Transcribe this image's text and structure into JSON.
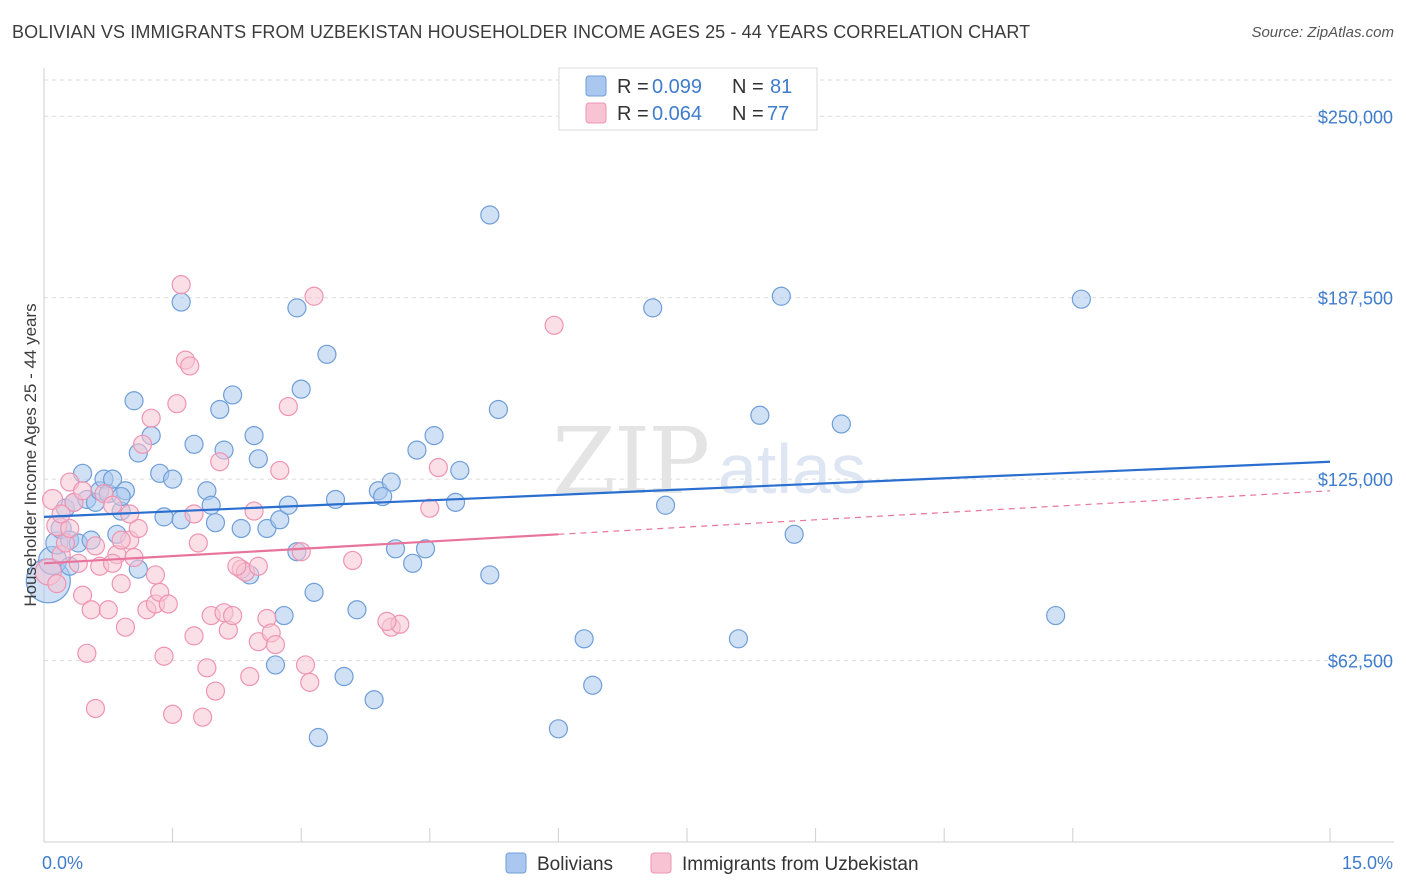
{
  "title": "BOLIVIAN VS IMMIGRANTS FROM UZBEKISTAN HOUSEHOLDER INCOME AGES 25 - 44 YEARS CORRELATION CHART",
  "source": "Source: ZipAtlas.com",
  "watermark": {
    "part1": "ZIP",
    "part2": "atlas"
  },
  "legend_top": {
    "rows": [
      {
        "r_label": "R =",
        "r_value": "0.099",
        "n_label": "N =",
        "n_value": "81"
      },
      {
        "r_label": "R =",
        "r_value": "0.064",
        "n_label": "N =",
        "n_value": "77"
      }
    ]
  },
  "legend_bottom": {
    "series1": "Bolivians",
    "series2": "Immigrants from Uzbekistan"
  },
  "chart_data": {
    "type": "scatter",
    "title": "BOLIVIAN VS IMMIGRANTS FROM UZBEKISTAN HOUSEHOLDER INCOME AGES 25 - 44 YEARS CORRELATION CHART",
    "xlabel": "",
    "ylabel": "Householder Income Ages 25 - 44 years",
    "xlim": [
      0,
      15
    ],
    "ylim": [
      0,
      262500
    ],
    "x_tick_labels": [
      "0.0%",
      "15.0%"
    ],
    "y_ticks": [
      62500,
      125000,
      187500,
      250000
    ],
    "y_tick_labels": [
      "$62,500",
      "$125,000",
      "$187,500",
      "$250,000"
    ],
    "colors": {
      "bolivians_fill": "#aac8ef",
      "bolivians_stroke": "#6f9ed8",
      "bolivians_line": "#2a6fd0",
      "uzbek_fill": "#f8c4d4",
      "uzbek_stroke": "#ee94b2",
      "uzbek_line": "#e8739c"
    },
    "series": [
      {
        "name": "Bolivians",
        "trend": {
          "x0": 0,
          "y0": 112000,
          "x1": 15,
          "y1": 131000,
          "dashed_from": null
        },
        "points": [
          [
            0.05,
            90000,
            22
          ],
          [
            0.1,
            97000,
            14
          ],
          [
            0.15,
            103000,
            11
          ],
          [
            0.2,
            108000,
            10
          ],
          [
            0.25,
            115000,
            9
          ],
          [
            0.3,
            104000,
            9
          ],
          [
            0.35,
            117000,
            9
          ],
          [
            0.4,
            103000,
            9
          ],
          [
            0.45,
            127000,
            9
          ],
          [
            0.5,
            118000,
            9
          ],
          [
            0.55,
            104000,
            9
          ],
          [
            0.6,
            117000,
            9
          ],
          [
            0.65,
            121000,
            9
          ],
          [
            0.7,
            125000,
            9
          ],
          [
            0.75,
            120000,
            9
          ],
          [
            0.8,
            125000,
            9
          ],
          [
            0.85,
            106000,
            9
          ],
          [
            0.9,
            114000,
            9
          ],
          [
            0.95,
            121000,
            9
          ],
          [
            1.05,
            152000,
            9
          ],
          [
            1.1,
            134000,
            9
          ],
          [
            1.1,
            94000,
            9
          ],
          [
            1.25,
            140000,
            9
          ],
          [
            1.35,
            127000,
            9
          ],
          [
            1.4,
            112000,
            9
          ],
          [
            1.5,
            125000,
            9
          ],
          [
            1.6,
            111000,
            9
          ],
          [
            1.75,
            137000,
            9
          ],
          [
            1.9,
            121000,
            9
          ],
          [
            2.0,
            110000,
            9
          ],
          [
            2.05,
            149000,
            9
          ],
          [
            2.1,
            135000,
            9
          ],
          [
            2.2,
            154000,
            9
          ],
          [
            2.3,
            108000,
            9
          ],
          [
            2.4,
            92000,
            9
          ],
          [
            2.45,
            140000,
            9
          ],
          [
            2.6,
            108000,
            9
          ],
          [
            2.7,
            61000,
            9
          ],
          [
            2.75,
            111000,
            9
          ],
          [
            2.8,
            78000,
            9
          ],
          [
            2.85,
            116000,
            9
          ],
          [
            2.95,
            100000,
            9
          ],
          [
            3.0,
            156000,
            9
          ],
          [
            3.15,
            86000,
            9
          ],
          [
            3.2,
            36000,
            9
          ],
          [
            3.3,
            168000,
            9
          ],
          [
            3.4,
            118000,
            9
          ],
          [
            3.5,
            57000,
            9
          ],
          [
            3.65,
            80000,
            9
          ],
          [
            3.85,
            49000,
            9
          ],
          [
            3.9,
            121000,
            9
          ],
          [
            4.05,
            124000,
            9
          ],
          [
            4.1,
            101000,
            9
          ],
          [
            4.3,
            96000,
            9
          ],
          [
            4.35,
            135000,
            9
          ],
          [
            4.45,
            101000,
            9
          ],
          [
            4.55,
            140000,
            9
          ],
          [
            4.8,
            117000,
            9
          ],
          [
            5.2,
            92000,
            9
          ],
          [
            5.2,
            216000,
            9
          ],
          [
            5.3,
            149000,
            9
          ],
          [
            6.0,
            39000,
            9
          ],
          [
            6.3,
            70000,
            9
          ],
          [
            6.4,
            54000,
            9
          ],
          [
            7.1,
            184000,
            9
          ],
          [
            7.25,
            116000,
            9
          ],
          [
            8.1,
            70000,
            9
          ],
          [
            8.35,
            147000,
            9
          ],
          [
            8.6,
            188000,
            9
          ],
          [
            8.75,
            106000,
            9
          ],
          [
            9.3,
            144000,
            9
          ],
          [
            11.8,
            78000,
            9
          ],
          [
            12.1,
            187000,
            9
          ],
          [
            1.6,
            186000,
            9
          ],
          [
            2.95,
            184000,
            9
          ],
          [
            0.3,
            95000,
            9
          ],
          [
            0.9,
            119000,
            9
          ],
          [
            1.95,
            116000,
            9
          ],
          [
            2.5,
            132000,
            9
          ],
          [
            3.95,
            119000,
            9
          ],
          [
            4.85,
            128000,
            9
          ]
        ]
      },
      {
        "name": "Immigrants from Uzbekistan",
        "trend": {
          "x0": 0,
          "y0": 96000,
          "x1": 15,
          "y1": 121000,
          "dashed_from": 6
        },
        "points": [
          [
            0.05,
            93000,
            13
          ],
          [
            0.1,
            118000,
            10
          ],
          [
            0.15,
            109000,
            10
          ],
          [
            0.2,
            99000,
            9
          ],
          [
            0.25,
            103000,
            9
          ],
          [
            0.3,
            108000,
            9
          ],
          [
            0.35,
            117000,
            9
          ],
          [
            0.4,
            96000,
            9
          ],
          [
            0.45,
            85000,
            9
          ],
          [
            0.5,
            65000,
            9
          ],
          [
            0.55,
            80000,
            9
          ],
          [
            0.6,
            46000,
            9
          ],
          [
            0.65,
            95000,
            9
          ],
          [
            0.7,
            120000,
            9
          ],
          [
            0.75,
            80000,
            9
          ],
          [
            0.8,
            116000,
            9
          ],
          [
            0.85,
            99000,
            9
          ],
          [
            0.9,
            89000,
            9
          ],
          [
            0.95,
            74000,
            9
          ],
          [
            1.0,
            104000,
            9
          ],
          [
            1.05,
            98000,
            9
          ],
          [
            1.1,
            108000,
            9
          ],
          [
            1.15,
            137000,
            9
          ],
          [
            1.2,
            80000,
            9
          ],
          [
            1.25,
            146000,
            9
          ],
          [
            1.3,
            82000,
            9
          ],
          [
            1.35,
            86000,
            9
          ],
          [
            1.4,
            64000,
            9
          ],
          [
            1.45,
            82000,
            9
          ],
          [
            1.5,
            44000,
            9
          ],
          [
            1.55,
            151000,
            9
          ],
          [
            1.6,
            192000,
            9
          ],
          [
            1.65,
            166000,
            9
          ],
          [
            1.7,
            164000,
            9
          ],
          [
            1.75,
            71000,
            9
          ],
          [
            1.8,
            103000,
            9
          ],
          [
            1.85,
            43000,
            9
          ],
          [
            1.9,
            60000,
            9
          ],
          [
            1.95,
            78000,
            9
          ],
          [
            2.0,
            52000,
            9
          ],
          [
            2.05,
            131000,
            9
          ],
          [
            2.1,
            79000,
            9
          ],
          [
            2.15,
            73000,
            9
          ],
          [
            2.3,
            94000,
            9
          ],
          [
            2.35,
            93000,
            9
          ],
          [
            2.4,
            57000,
            9
          ],
          [
            2.45,
            114000,
            9
          ],
          [
            2.5,
            69000,
            9
          ],
          [
            2.6,
            77000,
            9
          ],
          [
            2.65,
            72000,
            9
          ],
          [
            2.7,
            68000,
            9
          ],
          [
            2.75,
            128000,
            9
          ],
          [
            2.85,
            150000,
            9
          ],
          [
            3.05,
            61000,
            9
          ],
          [
            3.1,
            55000,
            9
          ],
          [
            3.15,
            188000,
            9
          ],
          [
            3.6,
            97000,
            9
          ],
          [
            4.05,
            74000,
            9
          ],
          [
            4.15,
            75000,
            9
          ],
          [
            4.5,
            115000,
            9
          ],
          [
            4.6,
            129000,
            9
          ],
          [
            5.95,
            178000,
            9
          ],
          [
            2.5,
            95000,
            9
          ],
          [
            1.0,
            113000,
            9
          ],
          [
            0.6,
            102000,
            9
          ],
          [
            0.2,
            113000,
            9
          ],
          [
            0.3,
            124000,
            9
          ],
          [
            0.8,
            96000,
            9
          ],
          [
            1.3,
            92000,
            9
          ],
          [
            2.2,
            78000,
            9
          ],
          [
            3.0,
            100000,
            9
          ],
          [
            4.0,
            76000,
            9
          ],
          [
            0.45,
            121000,
            9
          ],
          [
            0.9,
            104000,
            9
          ],
          [
            1.75,
            113000,
            9
          ],
          [
            2.25,
            95000,
            9
          ],
          [
            0.15,
            89000,
            9
          ]
        ]
      }
    ]
  }
}
